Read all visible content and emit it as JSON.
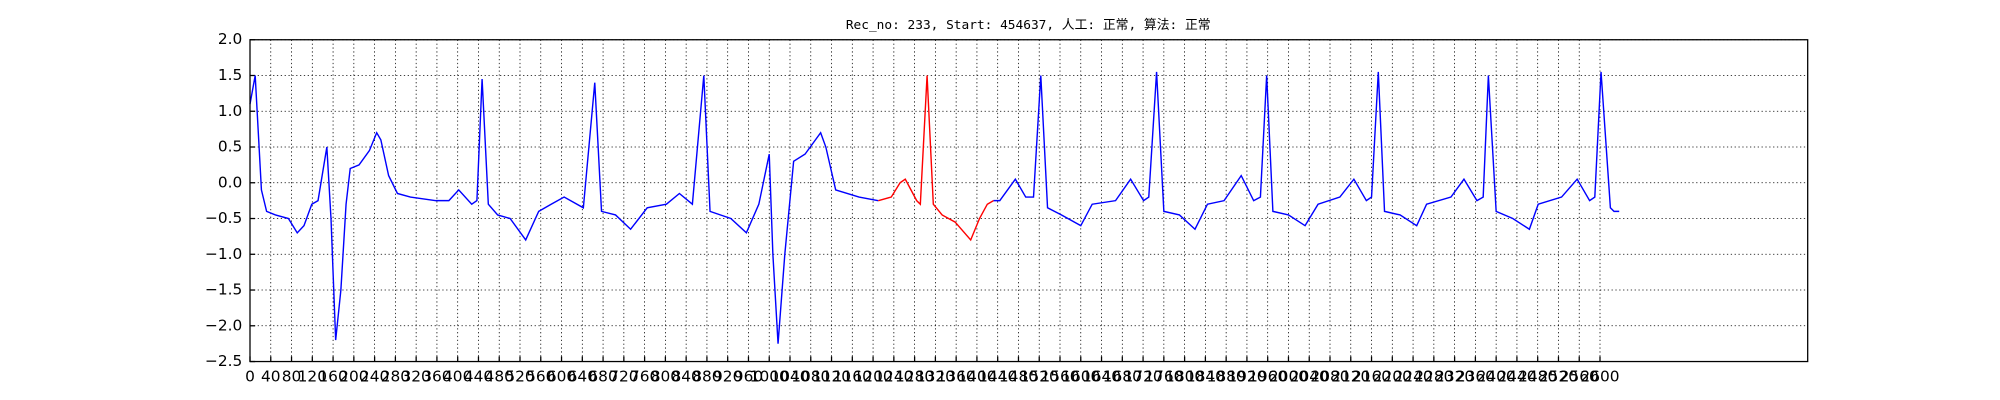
{
  "chart_data": {
    "type": "line",
    "title": "Rec_no: 233, Start: 454637, 人工: 正常, 算法: 正常",
    "xlim": [
      0,
      3000
    ],
    "ylim": [
      -2.5,
      2.0
    ],
    "xticks": [
      0,
      40,
      80,
      120,
      160,
      200,
      240,
      280,
      320,
      360,
      400,
      440,
      480,
      520,
      560,
      600,
      640,
      680,
      720,
      760,
      800,
      840,
      880,
      920,
      960,
      1000,
      1040,
      1080,
      1120,
      1160,
      1200,
      1240,
      1280,
      1320,
      1360,
      1400,
      1440,
      1480,
      1520,
      1560,
      1600,
      1640,
      1680,
      1720,
      1760,
      1800,
      1840,
      1880,
      1920,
      1960,
      2000,
      2040,
      2080,
      2120,
      2160,
      2200,
      2240,
      2280,
      2320,
      2360,
      2400,
      2440,
      2480,
      2520,
      2560,
      2600
    ],
    "yticks": [
      {
        "value": -2.5,
        "label": "−2.5"
      },
      {
        "value": -2.0,
        "label": "−2.0"
      },
      {
        "value": -1.5,
        "label": "−1.5"
      },
      {
        "value": -1.0,
        "label": "−1.0"
      },
      {
        "value": -0.5,
        "label": "−0.5"
      },
      {
        "value": 0.0,
        "label": "0.0"
      },
      0.5,
      {
        "value": 1.0,
        "label": "1.0"
      },
      1.5,
      {
        "value": 2.0,
        "label": "2.0"
      }
    ],
    "grid": true,
    "series": [
      {
        "color": "#0000ff",
        "x": [
          0,
          10,
          22,
          32,
          49,
          74,
          91,
          104,
          119,
          131,
          148,
          156,
          165,
          175,
          185,
          193,
          210,
          230,
          244,
          252,
          267,
          284,
          309,
          358,
          383,
          402,
          427,
          437,
          447,
          459,
          477,
          501,
          531,
          556,
          580,
          605,
          642,
          664,
          677,
          704,
          733,
          765,
          802,
          827,
          852,
          874,
          886,
          926,
          956,
          980,
          1000,
          1007,
          1017,
          1030,
          1047,
          1069,
          1099,
          1109,
          1128,
          1173,
          1210
        ],
        "values": [
          1.1,
          1.5,
          -0.1,
          -0.4,
          -0.45,
          -0.5,
          -0.7,
          -0.6,
          -0.3,
          -0.25,
          0.5,
          -0.5,
          -2.2,
          -1.5,
          -0.3,
          0.2,
          0.25,
          0.45,
          0.7,
          0.6,
          0.1,
          -0.15,
          -0.2,
          -0.25,
          -0.25,
          -0.1,
          -0.3,
          -0.25,
          1.45,
          -0.3,
          -0.45,
          -0.5,
          -0.8,
          -0.4,
          -0.3,
          -0.2,
          -0.35,
          1.4,
          -0.4,
          -0.45,
          -0.65,
          -0.35,
          -0.3,
          -0.15,
          -0.3,
          1.5,
          -0.4,
          -0.5,
          -0.7,
          -0.3,
          0.4,
          -1.0,
          -2.25,
          -1.0,
          0.3,
          0.4,
          0.7,
          0.5,
          -0.1,
          -0.2,
          -0.25
        ]
      },
      {
        "color": "#ff0000",
        "x": [
          1210,
          1235,
          1252,
          1262,
          1284,
          1291,
          1304,
          1316,
          1333,
          1358,
          1388,
          1405,
          1420,
          1432
        ],
        "values": [
          -0.25,
          -0.2,
          0.0,
          0.05,
          -0.25,
          -0.3,
          1.5,
          -0.3,
          -0.45,
          -0.55,
          -0.8,
          -0.5,
          -0.3,
          -0.25
        ]
      },
      {
        "color": "#0000ff",
        "x": [
          1432,
          1444,
          1474,
          1494,
          1509,
          1523,
          1536,
          1563,
          1600,
          1622,
          1667,
          1696,
          1721,
          1731,
          1746,
          1760,
          1790,
          1820,
          1844,
          1876,
          1909,
          1933,
          1946,
          1958,
          1970,
          2000,
          2032,
          2057,
          2099,
          2126,
          2150,
          2160,
          2173,
          2185,
          2215,
          2247,
          2266,
          2313,
          2338,
          2363,
          2375,
          2385,
          2400,
          2432,
          2464,
          2481,
          2526,
          2556,
          2580,
          2590,
          2602,
          2620,
          2627,
          2637
        ],
        "values": [
          -0.25,
          -0.25,
          0.05,
          -0.2,
          -0.2,
          1.5,
          -0.35,
          -0.45,
          -0.6,
          -0.3,
          -0.25,
          0.05,
          -0.25,
          -0.2,
          1.55,
          -0.4,
          -0.45,
          -0.65,
          -0.3,
          -0.25,
          0.1,
          -0.25,
          -0.2,
          1.5,
          -0.4,
          -0.45,
          -0.6,
          -0.3,
          -0.2,
          0.05,
          -0.25,
          -0.2,
          1.55,
          -0.4,
          -0.45,
          -0.6,
          -0.3,
          -0.2,
          0.05,
          -0.25,
          -0.2,
          1.5,
          -0.4,
          -0.5,
          -0.65,
          -0.3,
          -0.2,
          0.05,
          -0.25,
          -0.2,
          1.55,
          -0.35,
          -0.4,
          -0.4
        ]
      }
    ]
  }
}
